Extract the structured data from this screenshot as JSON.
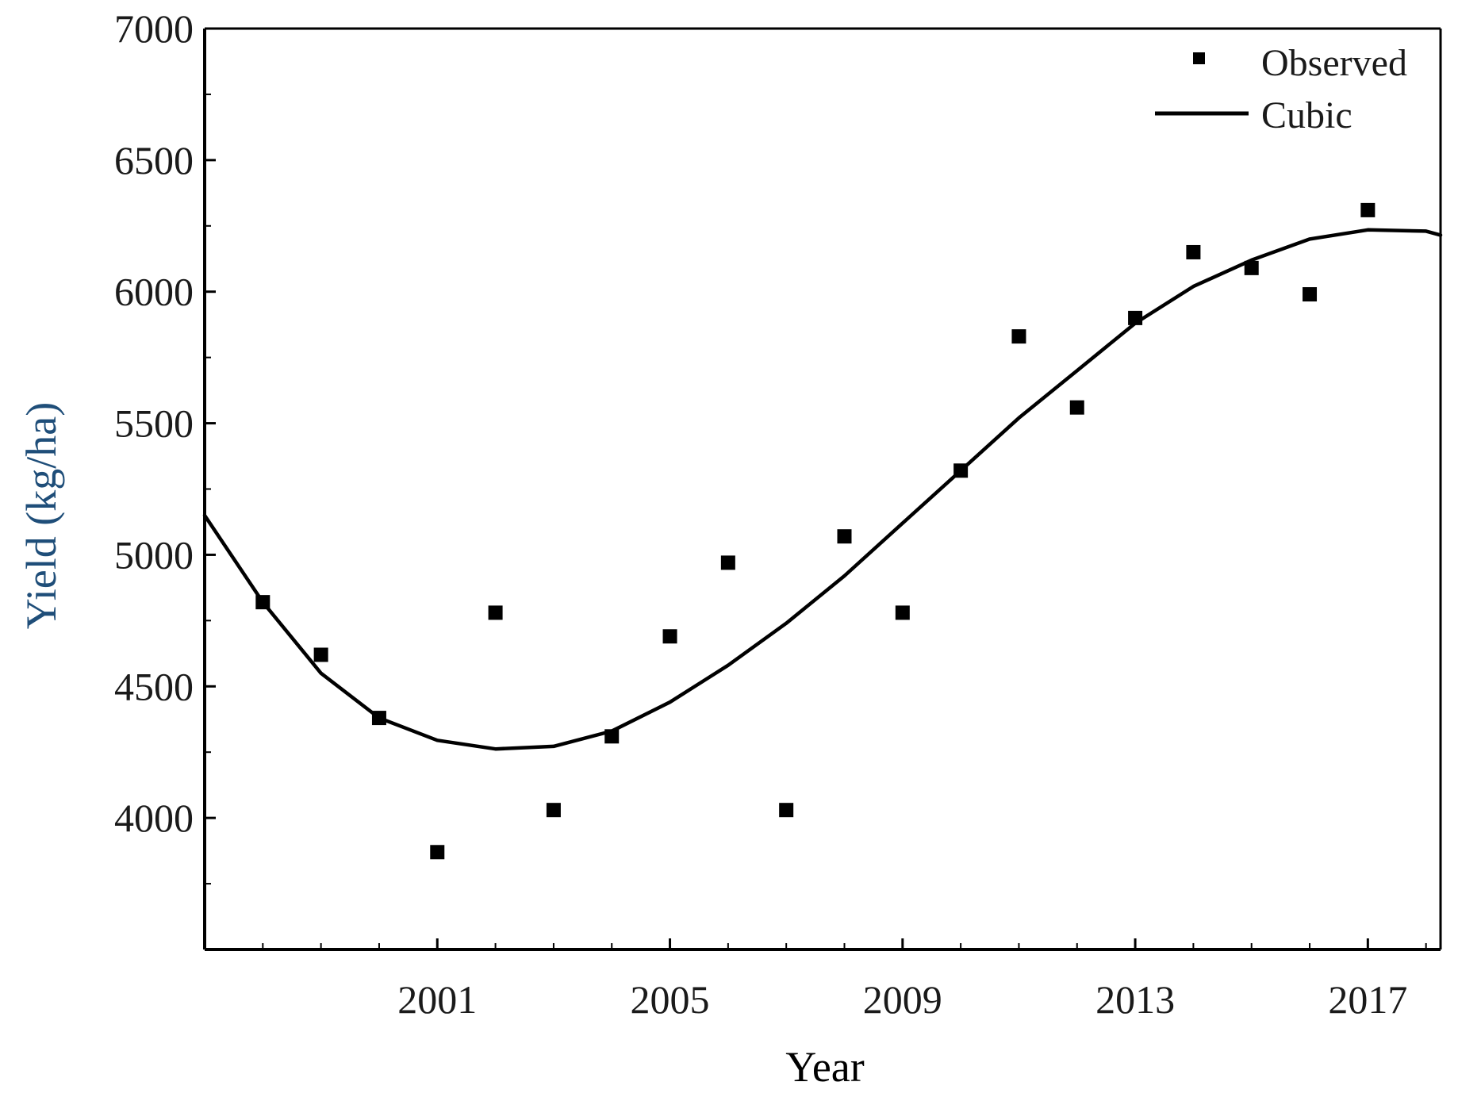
{
  "colors": {
    "axis": "#000000",
    "ylabel": "#1f4e79",
    "xlabel": "#000000",
    "marker": "#000000",
    "line": "#000000"
  },
  "chart_data": {
    "type": "scatter",
    "title": "",
    "xlabel": "Year",
    "ylabel": "Yield (kg/ha)",
    "xlim": [
      1997,
      2018.25
    ],
    "ylim": [
      3500,
      7000
    ],
    "xticks": [
      2001,
      2005,
      2009,
      2013,
      2017
    ],
    "xtick_labels": [
      "2001",
      "2005",
      "2009",
      "2013",
      "2017"
    ],
    "xminor_ticks": [
      1998,
      1999,
      2000,
      2002,
      2003,
      2004,
      2006,
      2007,
      2008,
      2010,
      2011,
      2012,
      2014,
      2015,
      2016,
      2018
    ],
    "yticks": [
      4000,
      4500,
      5000,
      5500,
      6000,
      6500,
      7000
    ],
    "ytick_labels": [
      "4000",
      "4500",
      "5000",
      "5500",
      "6000",
      "6500",
      "7000"
    ],
    "yminor_ticks": [
      3750,
      4250,
      4750,
      5250,
      5750,
      6250,
      6750
    ],
    "grid": false,
    "legend": {
      "position": "top-right",
      "entries": [
        {
          "label": "Observed",
          "style": "marker"
        },
        {
          "label": "Cubic",
          "style": "line"
        }
      ]
    },
    "series": [
      {
        "name": "Observed",
        "kind": "scatter",
        "marker": "square",
        "x": [
          1998,
          1999,
          2000,
          2001,
          2002,
          2003,
          2004,
          2005,
          2006,
          2007,
          2008,
          2009,
          2010,
          2011,
          2012,
          2013,
          2014,
          2015,
          2016,
          2017
        ],
        "y": [
          4820,
          4620,
          4380,
          3870,
          4780,
          4030,
          4310,
          4690,
          4970,
          4030,
          5070,
          4780,
          5320,
          5830,
          5560,
          5900,
          6150,
          6090,
          5990,
          6310
        ]
      },
      {
        "name": "Cubic",
        "kind": "line",
        "x": [
          1997,
          1998,
          1999,
          2000,
          2001,
          2002,
          2003,
          2004,
          2005,
          2006,
          2007,
          2008,
          2009,
          2010,
          2011,
          2012,
          2013,
          2014,
          2015,
          2016,
          2017,
          2018,
          2018.25
        ],
        "y": [
          5150,
          4820,
          4550,
          4380,
          4295,
          4262,
          4272,
          4330,
          4440,
          4580,
          4740,
          4920,
          5120,
          5320,
          5520,
          5700,
          5880,
          6020,
          6120,
          6200,
          6235,
          6230,
          6215
        ]
      }
    ]
  }
}
